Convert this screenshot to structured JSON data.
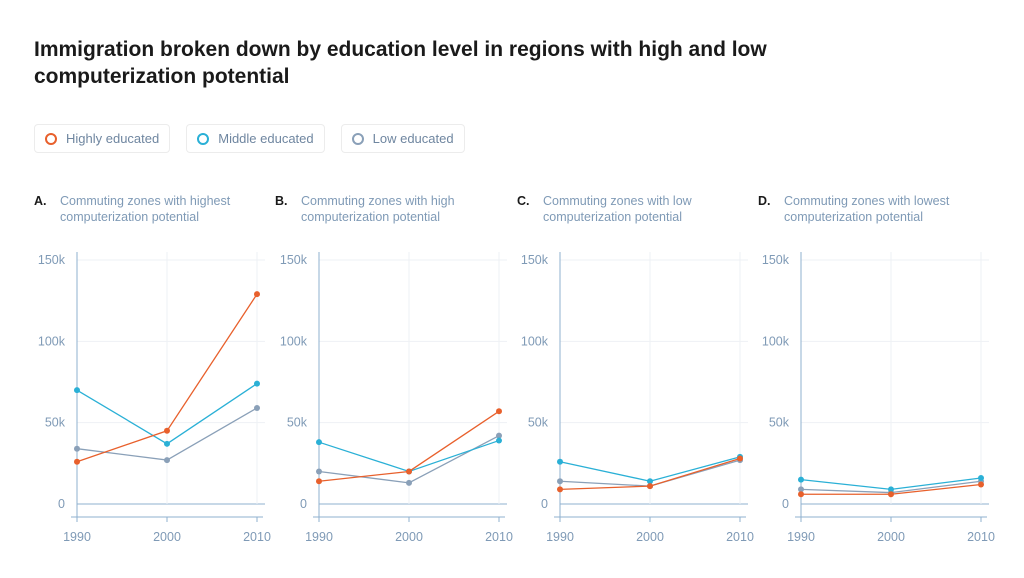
{
  "title": "Immigration broken down by education level in regions with high and low computerization potential",
  "legend": [
    {
      "label": "Highly educated",
      "color": "#e8602c",
      "icon": "circle-marker-icon"
    },
    {
      "label": "Middle educated",
      "color": "#2ab0d6",
      "icon": "circle-marker-icon"
    },
    {
      "label": "Low educated",
      "color": "#8aa0b8",
      "icon": "circle-marker-icon"
    }
  ],
  "colors": {
    "highly": "#e8602c",
    "middle": "#2ab0d6",
    "low": "#8aa0b8",
    "axis": "#8fb0cf",
    "grid": "#eef1f4",
    "text": "#7f9ab6"
  },
  "panels": [
    {
      "letter": "A.",
      "title": "Commuting zones with highest computerization potential"
    },
    {
      "letter": "B.",
      "title": "Commuting zones with high computerization potential"
    },
    {
      "letter": "C.",
      "title": "Commuting zones with low computerization potential"
    },
    {
      "letter": "D.",
      "title": "Commuting zones with lowest computerization potential"
    }
  ],
  "chart_data": [
    {
      "type": "line",
      "x": [
        1990,
        2000,
        2010
      ],
      "ylim": [
        0,
        150000
      ],
      "y_ticks": [
        "0",
        "50k",
        "100k",
        "150k"
      ],
      "x_ticks": [
        "1990",
        "2000",
        "2010"
      ],
      "grid": true,
      "series": [
        {
          "name": "Highly educated",
          "values": [
            26000,
            45000,
            129000
          ]
        },
        {
          "name": "Middle educated",
          "values": [
            70000,
            37000,
            74000
          ]
        },
        {
          "name": "Low educated",
          "values": [
            34000,
            27000,
            59000
          ]
        }
      ]
    },
    {
      "type": "line",
      "x": [
        1990,
        2000,
        2010
      ],
      "ylim": [
        0,
        150000
      ],
      "y_ticks": [
        "0",
        "50k",
        "100k",
        "150k"
      ],
      "x_ticks": [
        "1990",
        "2000",
        "2010"
      ],
      "grid": true,
      "series": [
        {
          "name": "Highly educated",
          "values": [
            14000,
            20000,
            57000
          ]
        },
        {
          "name": "Middle educated",
          "values": [
            38000,
            20000,
            39000
          ]
        },
        {
          "name": "Low educated",
          "values": [
            20000,
            13000,
            42000
          ]
        }
      ]
    },
    {
      "type": "line",
      "x": [
        1990,
        2000,
        2010
      ],
      "ylim": [
        0,
        150000
      ],
      "y_ticks": [
        "0",
        "50k",
        "100k",
        "150k"
      ],
      "x_ticks": [
        "1990",
        "2000",
        "2010"
      ],
      "grid": true,
      "series": [
        {
          "name": "Highly educated",
          "values": [
            9000,
            11000,
            28000
          ]
        },
        {
          "name": "Middle educated",
          "values": [
            26000,
            14000,
            29000
          ]
        },
        {
          "name": "Low educated",
          "values": [
            14000,
            11000,
            27000
          ]
        }
      ]
    },
    {
      "type": "line",
      "x": [
        1990,
        2000,
        2010
      ],
      "ylim": [
        0,
        150000
      ],
      "y_ticks": [
        "0",
        "50k",
        "100k",
        "150k"
      ],
      "x_ticks": [
        "1990",
        "2000",
        "2010"
      ],
      "grid": true,
      "series": [
        {
          "name": "Highly educated",
          "values": [
            6000,
            6000,
            12000
          ]
        },
        {
          "name": "Middle educated",
          "values": [
            15000,
            9000,
            16000
          ]
        },
        {
          "name": "Low educated",
          "values": [
            9000,
            7000,
            14000
          ]
        }
      ]
    }
  ]
}
